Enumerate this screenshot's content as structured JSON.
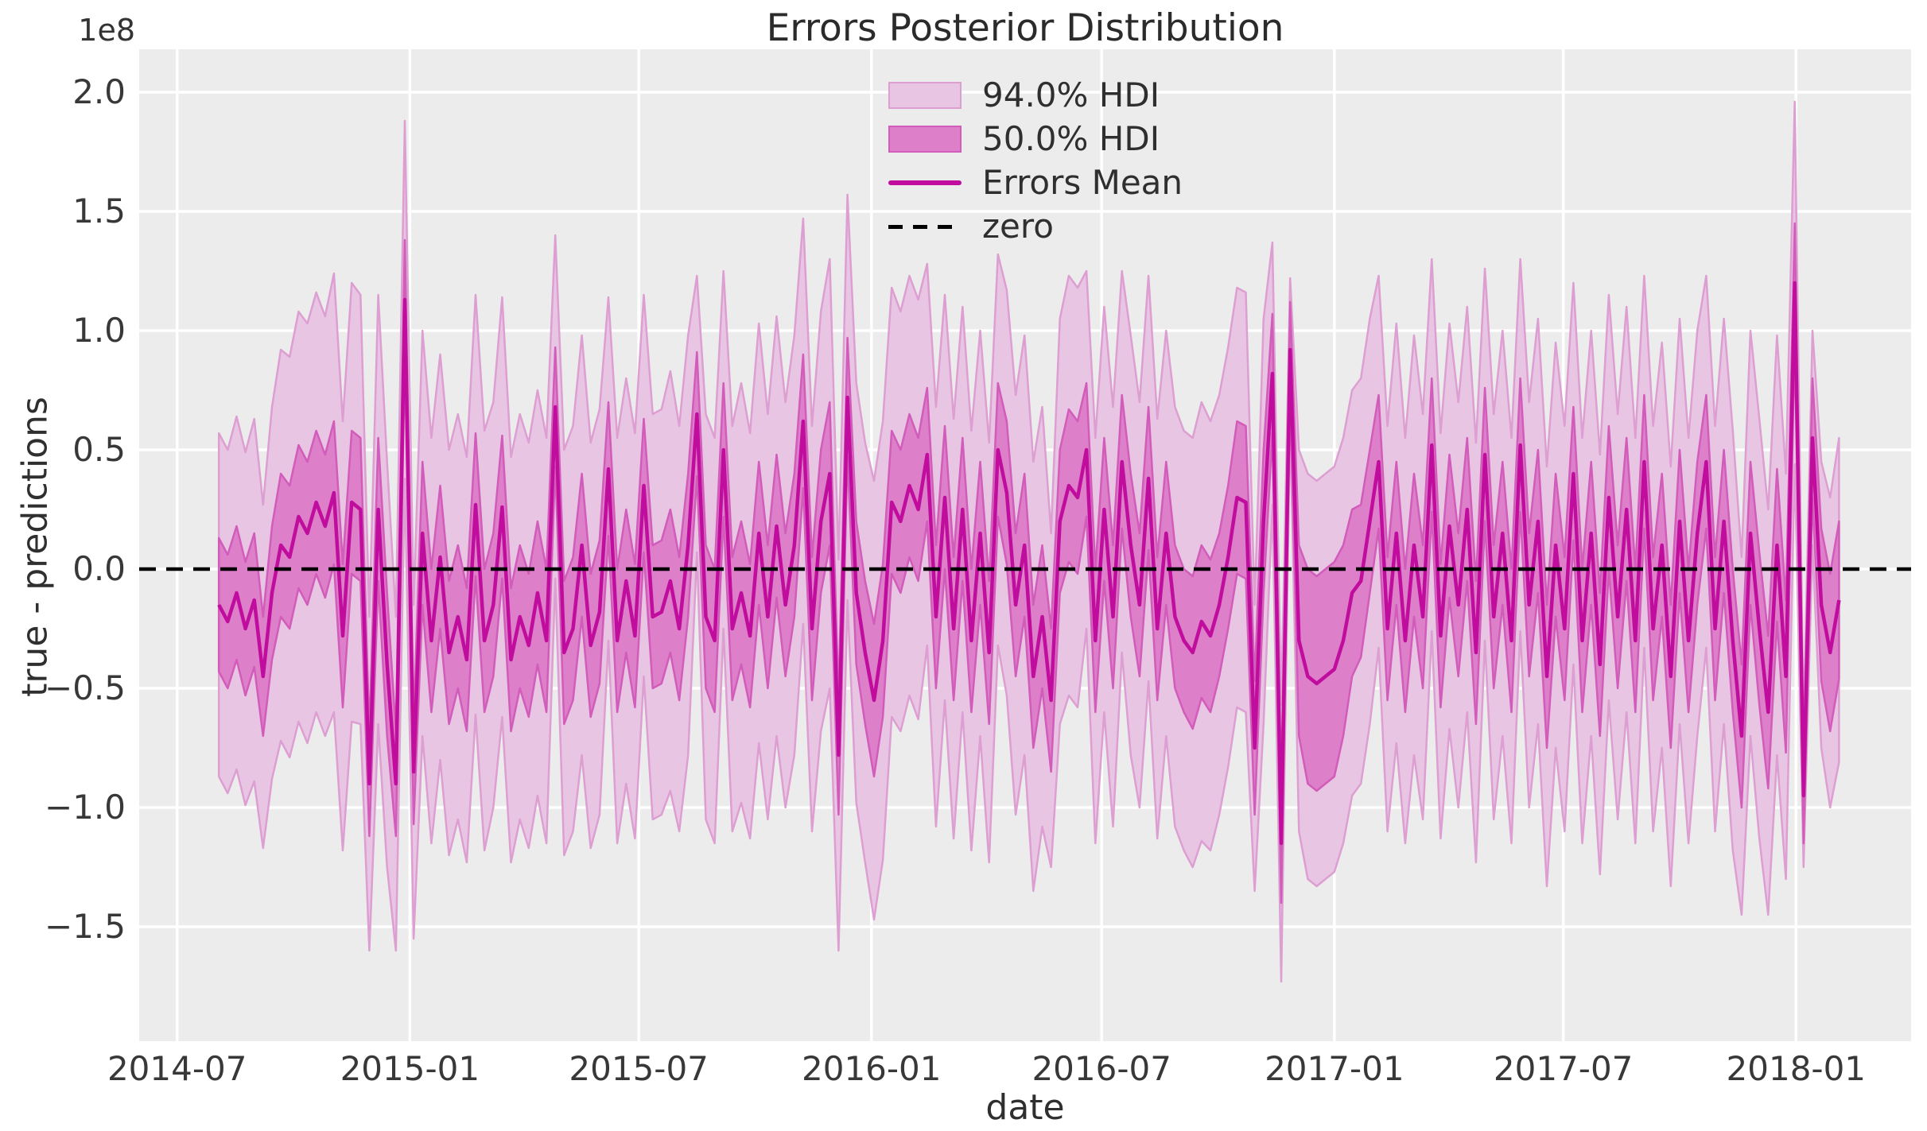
{
  "chart_data": {
    "type": "area",
    "title": "Errors Posterior Distribution",
    "xlabel": "date",
    "ylabel": "true - predictions",
    "y_offset_text": "1e8",
    "value_scale": "1e8",
    "grid": true,
    "legend_position": "upper center",
    "legend": [
      {
        "label": "94.0% HDI",
        "type": "patch"
      },
      {
        "label": "50.0% HDI",
        "type": "patch"
      },
      {
        "label": "Errors Mean",
        "type": "line"
      },
      {
        "label": "zero",
        "type": "dashed-line"
      }
    ],
    "colors": {
      "mean_line": "#c00d9e",
      "hdi94_fill": "#e9c5e4",
      "hdi94_edge": "#dd9ed2",
      "hdi50_fill": "#dd7fc9",
      "hdi50_edge": "#d15cba",
      "zero_line": "#000000",
      "plot_background": "#ececec",
      "grid_line": "#ffffff",
      "text": "#2f2f2f"
    },
    "x_ticks": [
      {
        "label": "2014-07",
        "day": 0
      },
      {
        "label": "2015-01",
        "day": 184
      },
      {
        "label": "2015-07",
        "day": 365
      },
      {
        "label": "2016-01",
        "day": 549
      },
      {
        "label": "2016-07",
        "day": 731
      },
      {
        "label": "2017-01",
        "day": 915
      },
      {
        "label": "2017-07",
        "day": 1096
      },
      {
        "label": "2018-01",
        "day": 1280
      }
    ],
    "y_ticks": [
      2.0,
      1.5,
      1.0,
      0.5,
      0.0,
      -0.5,
      -1.0,
      -1.5
    ],
    "xlim_days": [
      -30,
      1371
    ],
    "ylim": [
      -1.98,
      2.18
    ],
    "zero_value": 0.0,
    "x_start_date": "2014-08-03",
    "x_data_start_day": 33,
    "x_step_days": 7,
    "series": {
      "mean": [
        -0.15,
        -0.22,
        -0.1,
        -0.25,
        -0.13,
        -0.45,
        -0.1,
        0.1,
        0.05,
        0.22,
        0.15,
        0.28,
        0.18,
        0.32,
        -0.28,
        0.28,
        0.25,
        -0.9,
        0.25,
        -0.4,
        -0.9,
        1.13,
        -0.85,
        0.15,
        -0.3,
        0.05,
        -0.35,
        -0.2,
        -0.38,
        0.27,
        -0.3,
        -0.15,
        0.26,
        -0.38,
        -0.2,
        -0.32,
        -0.1,
        -0.3,
        0.68,
        -0.35,
        -0.25,
        0.1,
        -0.32,
        -0.18,
        0.42,
        -0.3,
        -0.05,
        -0.28,
        0.35,
        -0.2,
        -0.18,
        -0.05,
        -0.25,
        0.1,
        0.65,
        -0.2,
        -0.3,
        0.5,
        -0.25,
        -0.1,
        -0.28,
        0.15,
        -0.2,
        0.18,
        -0.15,
        0.1,
        0.62,
        -0.25,
        0.2,
        0.4,
        -0.78,
        0.72,
        -0.1,
        -0.35,
        -0.55,
        -0.3,
        0.28,
        0.2,
        0.35,
        0.25,
        0.48,
        -0.2,
        0.3,
        -0.25,
        0.25,
        -0.3,
        0.15,
        -0.35,
        0.5,
        0.32,
        -0.15,
        0.1,
        -0.45,
        -0.2,
        -0.55,
        0.2,
        0.35,
        0.3,
        0.5,
        -0.3,
        0.25,
        -0.2,
        0.45,
        0.1,
        -0.15,
        0.38,
        -0.25,
        0.15,
        -0.2,
        -0.3,
        -0.35,
        -0.22,
        -0.28,
        -0.15,
        0.05,
        0.3,
        0.28,
        -0.75,
        0.2,
        0.82,
        -1.15,
        0.92,
        -0.3,
        -0.45,
        -0.48,
        -0.45,
        -0.42,
        -0.3,
        -0.1,
        -0.05,
        0.2,
        0.45,
        -0.25,
        0.15,
        -0.3,
        0.1,
        -0.2,
        0.52,
        -0.28,
        0.18,
        -0.15,
        0.25,
        -0.35,
        0.48,
        -0.2,
        0.15,
        -0.3,
        0.52,
        -0.15,
        0.2,
        -0.45,
        0.1,
        -0.25,
        0.4,
        -0.3,
        0.15,
        -0.4,
        0.3,
        -0.2,
        0.25,
        -0.3,
        0.45,
        -0.25,
        0.1,
        -0.45,
        0.2,
        -0.3,
        0.15,
        0.45,
        -0.25,
        0.2,
        -0.3,
        -0.7,
        0.15,
        -0.25,
        -0.6,
        0.1,
        -0.45,
        1.2,
        -0.95,
        0.55,
        -0.15,
        -0.35,
        -0.13
      ],
      "hdi50_halfwidth": [
        0.28,
        0.28,
        0.28,
        0.28,
        0.28,
        0.25,
        0.28,
        0.3,
        0.3,
        0.3,
        0.3,
        0.3,
        0.3,
        0.3,
        0.3,
        0.3,
        0.3,
        0.22,
        0.3,
        0.3,
        0.22,
        0.25,
        0.22,
        0.3,
        0.3,
        0.3,
        0.3,
        0.3,
        0.3,
        0.3,
        0.3,
        0.3,
        0.3,
        0.3,
        0.3,
        0.3,
        0.3,
        0.3,
        0.25,
        0.3,
        0.3,
        0.3,
        0.3,
        0.3,
        0.28,
        0.3,
        0.3,
        0.3,
        0.28,
        0.3,
        0.3,
        0.3,
        0.3,
        0.3,
        0.26,
        0.3,
        0.3,
        0.28,
        0.3,
        0.3,
        0.3,
        0.3,
        0.3,
        0.3,
        0.3,
        0.3,
        0.28,
        0.3,
        0.3,
        0.3,
        0.25,
        0.25,
        0.3,
        0.3,
        0.32,
        0.32,
        0.3,
        0.3,
        0.3,
        0.3,
        0.28,
        0.3,
        0.3,
        0.3,
        0.3,
        0.3,
        0.3,
        0.3,
        0.28,
        0.3,
        0.3,
        0.3,
        0.3,
        0.3,
        0.3,
        0.3,
        0.32,
        0.32,
        0.28,
        0.3,
        0.3,
        0.3,
        0.28,
        0.3,
        0.3,
        0.3,
        0.3,
        0.3,
        0.3,
        0.3,
        0.32,
        0.32,
        0.32,
        0.3,
        0.3,
        0.32,
        0.32,
        0.28,
        0.3,
        0.25,
        0.25,
        0.2,
        0.4,
        0.45,
        0.45,
        0.45,
        0.45,
        0.4,
        0.35,
        0.32,
        0.3,
        0.28,
        0.3,
        0.3,
        0.3,
        0.3,
        0.3,
        0.28,
        0.3,
        0.3,
        0.3,
        0.3,
        0.3,
        0.28,
        0.3,
        0.3,
        0.3,
        0.28,
        0.3,
        0.3,
        0.3,
        0.3,
        0.3,
        0.28,
        0.3,
        0.3,
        0.3,
        0.3,
        0.3,
        0.3,
        0.3,
        0.28,
        0.3,
        0.3,
        0.3,
        0.3,
        0.3,
        0.3,
        0.28,
        0.3,
        0.3,
        0.3,
        0.3,
        0.3,
        0.32,
        0.32,
        0.32,
        0.32,
        0.25,
        0.2,
        0.25,
        0.32,
        0.33,
        0.33
      ],
      "hdi94_halfwidth": [
        0.72,
        0.72,
        0.74,
        0.74,
        0.76,
        0.72,
        0.78,
        0.82,
        0.84,
        0.86,
        0.88,
        0.88,
        0.88,
        0.92,
        0.9,
        0.92,
        0.9,
        0.7,
        0.9,
        0.85,
        0.7,
        0.75,
        0.7,
        0.85,
        0.85,
        0.85,
        0.85,
        0.85,
        0.85,
        0.88,
        0.88,
        0.85,
        0.88,
        0.85,
        0.85,
        0.85,
        0.85,
        0.85,
        0.72,
        0.85,
        0.85,
        0.88,
        0.85,
        0.85,
        0.72,
        0.85,
        0.85,
        0.85,
        0.8,
        0.85,
        0.85,
        0.88,
        0.85,
        0.88,
        0.58,
        0.85,
        0.85,
        0.75,
        0.85,
        0.88,
        0.85,
        0.88,
        0.85,
        0.88,
        0.85,
        0.88,
        0.85,
        0.85,
        0.88,
        0.9,
        0.82,
        0.85,
        0.88,
        0.88,
        0.92,
        0.92,
        0.9,
        0.88,
        0.88,
        0.88,
        0.8,
        0.88,
        0.85,
        0.88,
        0.85,
        0.88,
        0.85,
        0.88,
        0.82,
        0.85,
        0.88,
        0.88,
        0.9,
        0.88,
        0.7,
        0.85,
        0.88,
        0.88,
        0.75,
        0.85,
        0.85,
        0.88,
        0.8,
        0.88,
        0.85,
        0.85,
        0.88,
        0.85,
        0.88,
        0.88,
        0.9,
        0.92,
        0.9,
        0.88,
        0.88,
        0.88,
        0.88,
        0.6,
        0.85,
        0.55,
        0.58,
        0.3,
        0.8,
        0.85,
        0.85,
        0.85,
        0.85,
        0.85,
        0.85,
        0.85,
        0.85,
        0.78,
        0.85,
        0.88,
        0.85,
        0.88,
        0.85,
        0.78,
        0.85,
        0.85,
        0.85,
        0.85,
        0.88,
        0.78,
        0.85,
        0.85,
        0.85,
        0.78,
        0.85,
        0.85,
        0.88,
        0.85,
        0.85,
        0.8,
        0.85,
        0.85,
        0.88,
        0.85,
        0.85,
        0.85,
        0.85,
        0.78,
        0.85,
        0.85,
        0.88,
        0.85,
        0.85,
        0.85,
        0.78,
        0.85,
        0.85,
        0.88,
        0.75,
        0.85,
        0.88,
        0.85,
        0.88,
        0.85,
        0.76,
        0.3,
        0.45,
        0.6,
        0.65,
        0.68
      ]
    }
  }
}
